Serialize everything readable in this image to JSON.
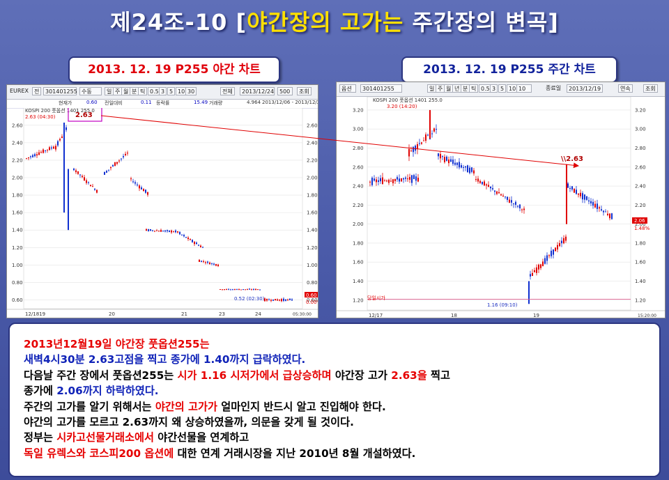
{
  "title": {
    "prefix": "제24조-10 [",
    "highlight": "야간장의 고가는",
    "suffix": " 주간장의 변곡]"
  },
  "night_chart": {
    "label": "2013. 12. 19  P255 야간 차트",
    "toolbar": {
      "exchange": "EUREX",
      "tab": "전",
      "code": "301401255",
      "mode": "수동",
      "periods": [
        "일",
        "주",
        "월",
        "분",
        "틱"
      ],
      "intervals": [
        "0.5",
        "3",
        "5",
        "10",
        "30"
      ],
      "all": "전체",
      "date": "2013/12/24",
      "count": "500",
      "query": "조회"
    },
    "info": [
      "현재가",
      "0.60",
      "전일대비",
      "0.11",
      "등락률",
      "15.49",
      "거래량",
      "4.964",
      "2013/12/06 - 2013/12/24"
    ],
    "legend": "KOSPI 200 풋옵션 1401 255.0",
    "high_annotation": "2.63 (04:30)",
    "high_box": "2.63",
    "low_annotation": "0.52 (02:30)",
    "current_price": "0.60",
    "current_pct": "0.00%",
    "date_labels": [
      "12/1819",
      "20",
      "21",
      "23",
      "24"
    ],
    "time_label": "05:30:00"
  },
  "day_chart": {
    "label": "2013. 12. 19  P255 주간 차트",
    "toolbar": {
      "market": "옵션",
      "code": "301401255",
      "periods": [
        "일",
        "주",
        "월",
        "년",
        "분",
        "틱"
      ],
      "intervals": [
        "0.5",
        "3",
        "5",
        "10",
        "10"
      ],
      "end_label": "종료일",
      "date": "2013/12/19",
      "continuous": "연속",
      "query": "조회"
    },
    "legend": "KOSPI 200 풋옵션 1401 255.0",
    "high_annotation": "3.20 (14:20)",
    "mark_2_63": "\\\\2.63",
    "open_line": "당일시가",
    "low_annotation": "1.16 (09:10)",
    "current_price": "2.06",
    "current_pct": "1.48%",
    "date_labels": [
      "12/17",
      "18",
      "19"
    ],
    "time_label": "15:20:00"
  },
  "chart_data": [
    {
      "type": "candlestick",
      "name": "P255 night session",
      "y_ticks": [
        0.6,
        0.8,
        1.0,
        1.2,
        1.4,
        1.6,
        1.8,
        2.0,
        2.2,
        2.4,
        2.6
      ],
      "ylim": [
        0.5,
        2.75
      ],
      "high": 2.63,
      "low": 0.52,
      "close": 0.6
    },
    {
      "type": "candlestick",
      "name": "P255 day session",
      "y_ticks": [
        1.2,
        1.4,
        1.6,
        1.8,
        2.0,
        2.2,
        2.4,
        2.6,
        2.8,
        3.0,
        3.2
      ],
      "ylim": [
        1.14,
        3.28
      ],
      "high": 3.2,
      "low": 1.16,
      "close": 2.06,
      "marked_level": 2.63
    }
  ],
  "info_lines": [
    [
      {
        "t": "2013년12월19일 야간장 풋옵션255는",
        "c": "red"
      }
    ],
    [
      {
        "t": "새벽4시30분 2.63고점을 찍고 종가에 1.40까지 급락하였다.",
        "c": "blue"
      }
    ],
    [
      {
        "t": "다음날 주간 장에서 풋옵션255는 ",
        "c": "black"
      },
      {
        "t": "시가 1.16 시저가에서 급상승하며",
        "c": "red"
      },
      {
        "t": " 야간장 고가 ",
        "c": "black"
      },
      {
        "t": "2.63을",
        "c": "red"
      },
      {
        "t": " 찍고",
        "c": "black"
      }
    ],
    [
      {
        "t": "종가에 ",
        "c": "black"
      },
      {
        "t": "2.06까지 하락하였다.",
        "c": "blue"
      }
    ],
    [
      {
        "t": "주간의 고가를 알기 위해서는 ",
        "c": "black"
      },
      {
        "t": "야간의 고가가",
        "c": "red"
      },
      {
        "t": " 얼마인지 반드시 알고 진입해야 한다.",
        "c": "black"
      }
    ],
    [
      {
        "t": "야간의 고가를 모르고 2.63까지 왜 상승하였을까, 의문을 갖게 될 것이다.",
        "c": "black"
      }
    ],
    [
      {
        "t": "정부는 ",
        "c": "black"
      },
      {
        "t": "시카고선물거래소에서",
        "c": "red"
      },
      {
        "t": " 야간선물을 연계하고",
        "c": "black"
      }
    ],
    [
      {
        "t": "독일 유렉스와 코스피200 옵션에",
        "c": "red"
      },
      {
        "t": " 대한 연계 거래시장을 지난 2010년 8월 개설하였다.",
        "c": "black"
      }
    ]
  ]
}
